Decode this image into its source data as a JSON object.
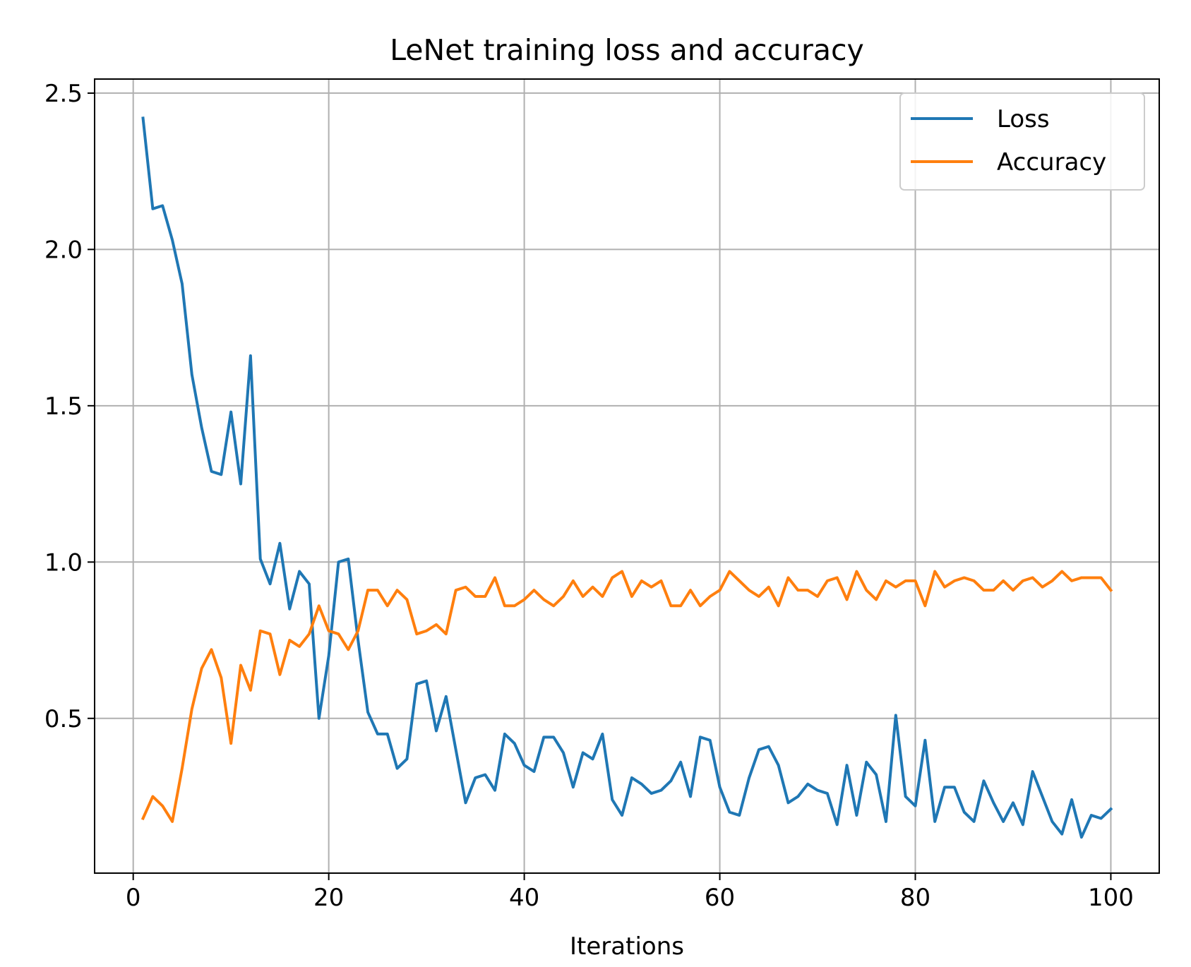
{
  "chart_data": {
    "type": "line",
    "title": "LeNet training loss and accuracy",
    "xlabel": "Iterations",
    "ylabel": "",
    "xlim": [
      -3.95,
      104.95
    ],
    "ylim": [
      0.005,
      2.545
    ],
    "xticks": [
      0,
      20,
      40,
      60,
      80,
      100
    ],
    "xtick_labels": [
      "0",
      "20",
      "40",
      "60",
      "80",
      "100"
    ],
    "yticks": [
      0.5,
      1.0,
      1.5,
      2.0,
      2.5
    ],
    "ytick_labels": [
      "0.5",
      "1.0",
      "1.5",
      "2.0",
      "2.5"
    ],
    "grid": true,
    "legend_position": "top-right",
    "x": [
      1,
      2,
      3,
      4,
      5,
      6,
      7,
      8,
      9,
      10,
      11,
      12,
      13,
      14,
      15,
      16,
      17,
      18,
      19,
      20,
      21,
      22,
      23,
      24,
      25,
      26,
      27,
      28,
      29,
      30,
      31,
      32,
      33,
      34,
      35,
      36,
      37,
      38,
      39,
      40,
      41,
      42,
      43,
      44,
      45,
      46,
      47,
      48,
      49,
      50,
      51,
      52,
      53,
      54,
      55,
      56,
      57,
      58,
      59,
      60,
      61,
      62,
      63,
      64,
      65,
      66,
      67,
      68,
      69,
      70,
      71,
      72,
      73,
      74,
      75,
      76,
      77,
      78,
      79,
      80,
      81,
      82,
      83,
      84,
      85,
      86,
      87,
      88,
      89,
      90,
      91,
      92,
      93,
      94,
      95,
      96,
      97,
      98,
      99,
      100
    ],
    "series": [
      {
        "name": "Loss",
        "color": "#1f77b4",
        "values": [
          2.42,
          2.13,
          2.14,
          2.03,
          1.89,
          1.6,
          1.43,
          1.29,
          1.28,
          1.48,
          1.25,
          1.66,
          1.01,
          0.93,
          1.06,
          0.85,
          0.97,
          0.93,
          0.5,
          0.7,
          1.0,
          1.01,
          0.75,
          0.52,
          0.45,
          0.45,
          0.34,
          0.37,
          0.61,
          0.62,
          0.46,
          0.57,
          0.4,
          0.23,
          0.31,
          0.32,
          0.27,
          0.45,
          0.42,
          0.35,
          0.33,
          0.44,
          0.44,
          0.39,
          0.28,
          0.39,
          0.37,
          0.45,
          0.24,
          0.19,
          0.31,
          0.29,
          0.26,
          0.27,
          0.3,
          0.36,
          0.25,
          0.44,
          0.43,
          0.28,
          0.2,
          0.19,
          0.31,
          0.4,
          0.41,
          0.35,
          0.23,
          0.25,
          0.29,
          0.27,
          0.26,
          0.16,
          0.35,
          0.19,
          0.36,
          0.32,
          0.17,
          0.51,
          0.25,
          0.22,
          0.43,
          0.17,
          0.28,
          0.28,
          0.2,
          0.17,
          0.3,
          0.23,
          0.17,
          0.23,
          0.16,
          0.33,
          0.25,
          0.17,
          0.13,
          0.24,
          0.12,
          0.19,
          0.18,
          0.21
        ]
      },
      {
        "name": "Accuracy",
        "color": "#ff7f0e",
        "values": [
          0.18,
          0.25,
          0.22,
          0.17,
          0.34,
          0.53,
          0.66,
          0.72,
          0.63,
          0.42,
          0.67,
          0.59,
          0.78,
          0.77,
          0.64,
          0.75,
          0.73,
          0.77,
          0.86,
          0.78,
          0.77,
          0.72,
          0.78,
          0.91,
          0.91,
          0.86,
          0.91,
          0.88,
          0.77,
          0.78,
          0.8,
          0.77,
          0.91,
          0.92,
          0.89,
          0.89,
          0.95,
          0.86,
          0.86,
          0.88,
          0.91,
          0.88,
          0.86,
          0.89,
          0.94,
          0.89,
          0.92,
          0.89,
          0.95,
          0.97,
          0.89,
          0.94,
          0.92,
          0.94,
          0.86,
          0.86,
          0.91,
          0.86,
          0.89,
          0.91,
          0.97,
          0.94,
          0.91,
          0.89,
          0.92,
          0.86,
          0.95,
          0.91,
          0.91,
          0.89,
          0.94,
          0.95,
          0.88,
          0.97,
          0.91,
          0.88,
          0.94,
          0.92,
          0.94,
          0.94,
          0.86,
          0.97,
          0.92,
          0.94,
          0.95,
          0.94,
          0.91,
          0.91,
          0.94,
          0.91,
          0.94,
          0.95,
          0.92,
          0.94,
          0.97,
          0.94,
          0.95,
          0.95,
          0.95,
          0.91
        ]
      }
    ]
  }
}
